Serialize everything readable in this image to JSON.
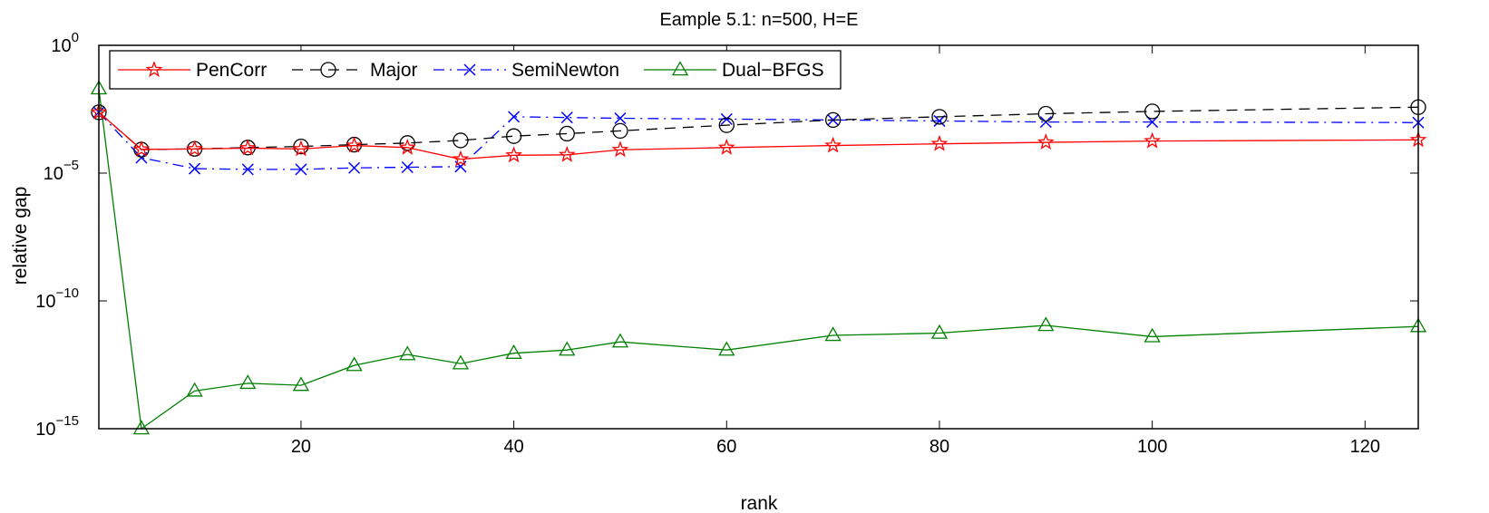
{
  "chart_data": {
    "type": "line",
    "title": "Eample 5.1: n=500, H=E",
    "xlabel": "rank",
    "ylabel": "relative gap",
    "xlim": [
      1,
      125
    ],
    "ylim": [
      1e-15,
      1
    ],
    "yscale": "log",
    "xticks": [
      20,
      40,
      60,
      80,
      100,
      120
    ],
    "yticks": [
      {
        "value": 1,
        "base": "10",
        "exp": "0"
      },
      {
        "value": 1e-05,
        "base": "10",
        "exp": "−5"
      },
      {
        "value": 1e-10,
        "base": "10",
        "exp": "−10"
      },
      {
        "value": 1e-15,
        "base": "10",
        "exp": "−15"
      }
    ],
    "grid": false,
    "legend_position": "top-left",
    "series": [
      {
        "name": "PenCorr",
        "color": "#ff0000",
        "linestyle": "solid",
        "marker": "star",
        "x": [
          1,
          5,
          10,
          15,
          20,
          25,
          30,
          35,
          40,
          45,
          50,
          60,
          70,
          80,
          90,
          100,
          125
        ],
        "y": [
          0.0024,
          8.5e-05,
          8.8e-05,
          9.5e-05,
          8.8e-05,
          0.00012,
          0.0001,
          3.5e-05,
          5e-05,
          5.2e-05,
          8.2e-05,
          0.0001,
          0.00012,
          0.00014,
          0.00016,
          0.00018,
          0.0002
        ]
      },
      {
        "name": "Major",
        "color": "#000000",
        "linestyle": "dashed",
        "marker": "circle",
        "x": [
          1,
          5,
          10,
          15,
          20,
          25,
          30,
          35,
          40,
          45,
          50,
          60,
          70,
          80,
          90,
          100,
          125
        ],
        "y": [
          0.0024,
          8.3e-05,
          8.9e-05,
          0.0001,
          0.00011,
          0.00013,
          0.00015,
          0.00019,
          0.00028,
          0.00035,
          0.00045,
          0.00075,
          0.0012,
          0.0016,
          0.0021,
          0.0026,
          0.0038
        ]
      },
      {
        "name": "SemiNewton",
        "color": "#0000ff",
        "linestyle": "dashdot",
        "marker": "x",
        "x": [
          1,
          5,
          10,
          15,
          20,
          25,
          30,
          35,
          40,
          45,
          50,
          60,
          70,
          80,
          90,
          100,
          125
        ],
        "y": [
          0.0024,
          4e-05,
          1.5e-05,
          1.4e-05,
          1.4e-05,
          1.6e-05,
          1.7e-05,
          1.8e-05,
          0.0016,
          0.0015,
          0.0014,
          0.0013,
          0.0012,
          0.0011,
          0.001,
          0.001,
          0.00095
        ]
      },
      {
        "name": "Dual−BFGS",
        "color": "#008000",
        "linestyle": "solid",
        "marker": "triangle",
        "x": [
          1,
          5,
          10,
          15,
          20,
          25,
          30,
          35,
          40,
          45,
          50,
          60,
          70,
          80,
          90,
          100,
          125
        ],
        "y": [
          0.02,
          1e-15,
          3e-14,
          6e-14,
          5e-14,
          3e-13,
          8e-13,
          3.5e-13,
          9e-13,
          1.2e-12,
          2.5e-12,
          1.2e-12,
          4.5e-12,
          5.5e-12,
          1.1e-11,
          4e-12,
          1e-11
        ]
      }
    ]
  }
}
